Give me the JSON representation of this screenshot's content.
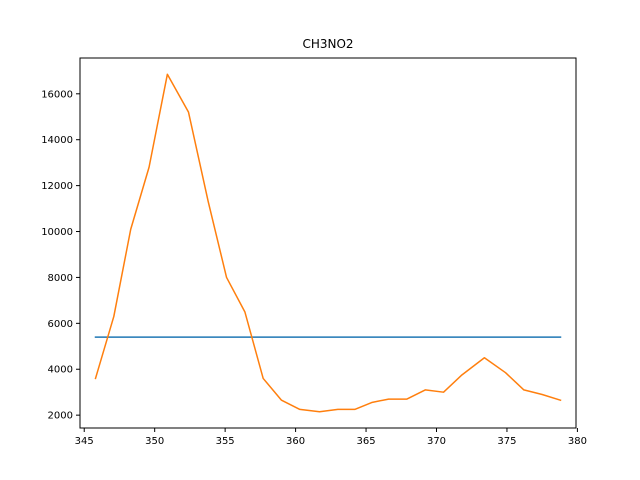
{
  "chart_data": {
    "type": "line",
    "title": "CH3NO2",
    "xlabel": "",
    "ylabel": "",
    "xlim": [
      344.7,
      379.9
    ],
    "ylim": [
      1440,
      17560
    ],
    "xticks": [
      345,
      350,
      355,
      360,
      365,
      370,
      375,
      380
    ],
    "yticks": [
      2000,
      4000,
      6000,
      8000,
      10000,
      12000,
      14000,
      16000
    ],
    "grid": false,
    "legend": "none",
    "series": [
      {
        "color": "#1f77b4",
        "x": [
          345.8,
          378.8
        ],
        "y": [
          5400,
          5400
        ]
      },
      {
        "color": "#ff7f0e",
        "x": [
          345.8,
          347.1,
          348.3,
          349.6,
          350.9,
          352.4,
          353.8,
          355.1,
          356.4,
          357.7,
          359.0,
          360.3,
          361.7,
          363.0,
          364.2,
          365.4,
          366.6,
          367.9,
          369.2,
          370.5,
          371.8,
          373.4,
          374.9,
          376.2,
          377.5,
          378.8
        ],
        "y": [
          3600,
          6300,
          10100,
          12800,
          16850,
          15200,
          11300,
          8000,
          6500,
          3600,
          2650,
          2250,
          2150,
          2250,
          2250,
          2550,
          2700,
          2700,
          3100,
          3000,
          3750,
          4500,
          3850,
          3100,
          2900,
          2650
        ]
      }
    ]
  }
}
